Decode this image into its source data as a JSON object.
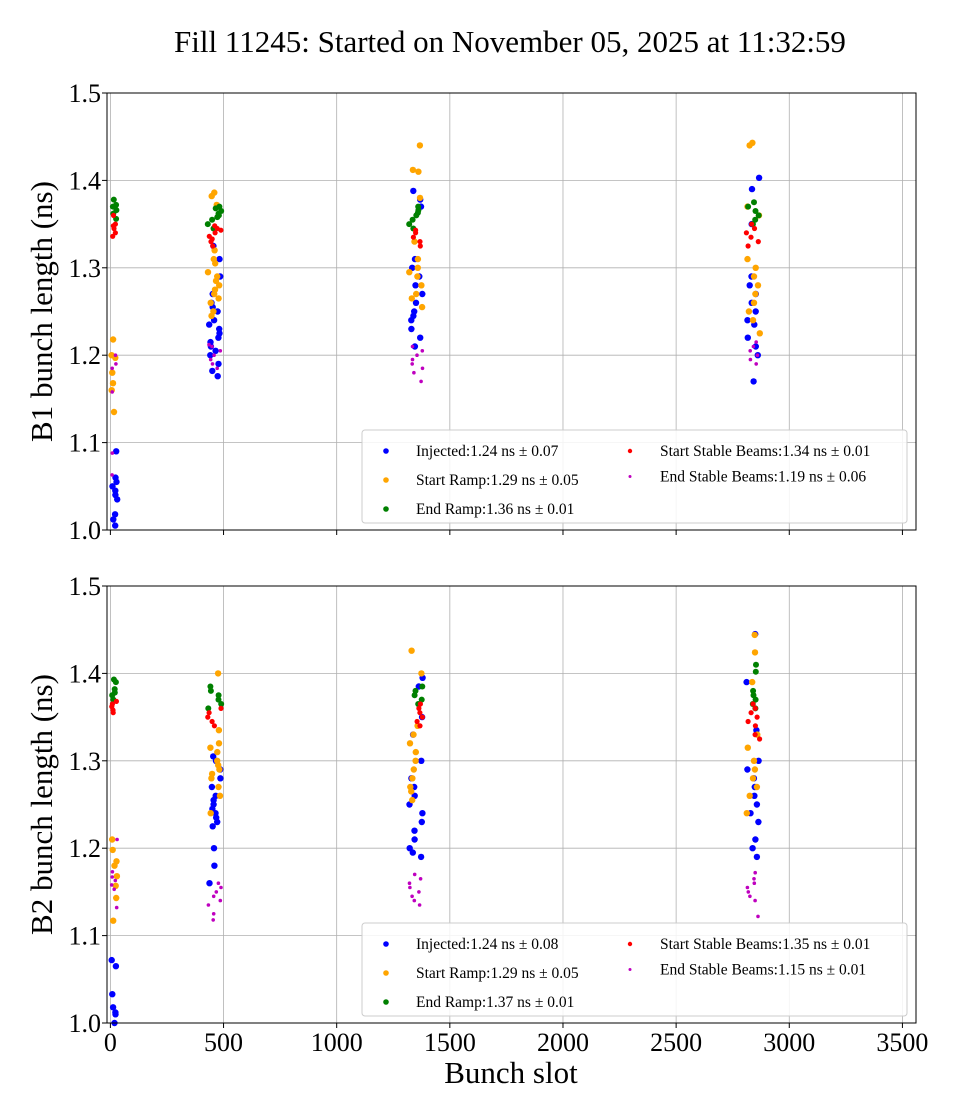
{
  "chart_data": {
    "type": "scatter",
    "title": "Fill 11245: Started on November 05, 2025 at 11:32:59",
    "xlabel": "Bunch slot",
    "xlim": [
      -15,
      3560
    ],
    "xticks": [
      0,
      500,
      1000,
      1500,
      2000,
      2500,
      3000,
      3500
    ],
    "grid": true,
    "legend_placement": "lower-right",
    "series_colors": {
      "Injected": "#0000ff",
      "Start Ramp": "#ffa500",
      "End Ramp": "#008000",
      "Start Stable Beams": "#ff0000",
      "End Stable Beams": "#bf00bf"
    },
    "panels": [
      {
        "id": "B1",
        "ylabel": "B1 bunch length (ns)",
        "ylim": [
          1.0,
          1.5
        ],
        "yticks": [
          "1.0",
          "1.1",
          "1.2",
          "1.3",
          "1.4",
          "1.5"
        ],
        "show_xticklabels": false,
        "legend": [
          {
            "name": "Injected",
            "text": "Injected:1.24 ns ± 0.07",
            "mean": 1.24,
            "std": 0.07
          },
          {
            "name": "Start Ramp",
            "text": "Start Ramp:1.29 ns ± 0.05",
            "mean": 1.29,
            "std": 0.05
          },
          {
            "name": "End Ramp",
            "text": "End Ramp:1.36 ns ± 0.01",
            "mean": 1.36,
            "std": 0.01
          },
          {
            "name": "Start Stable Beams",
            "text": "Start Stable Beams:1.34 ns ± 0.01",
            "mean": 1.34,
            "std": 0.01
          },
          {
            "name": "End Stable Beams",
            "text": "End Stable Beams:1.19 ns ± 0.06",
            "mean": 1.19,
            "std": 0.06
          }
        ],
        "clusters": [
          {
            "x_range": [
              5,
              30
            ],
            "series": {
              "Injected": [
                1.005,
                1.012,
                1.018,
                1.035,
                1.04,
                1.045,
                1.05,
                1.055,
                1.06,
                1.09
              ],
              "Start Ramp": [
                1.135,
                1.16,
                1.168,
                1.18,
                1.197,
                1.2,
                1.218
              ],
              "End Ramp": [
                1.356,
                1.362,
                1.366,
                1.37,
                1.372,
                1.378
              ],
              "Start Stable Beams": [
                1.336,
                1.34,
                1.345,
                1.348,
                1.35,
                1.36
              ],
              "End Stable Beams": [
                1.063,
                1.088,
                1.158,
                1.185,
                1.19,
                1.2
              ]
            }
          },
          {
            "x_range": [
              430,
              490
            ],
            "series": {
              "Injected": [
                1.176,
                1.182,
                1.19,
                1.2,
                1.205,
                1.21,
                1.215,
                1.22,
                1.225,
                1.23,
                1.235,
                1.24,
                1.25,
                1.255,
                1.26,
                1.27,
                1.29,
                1.31,
                1.325
              ],
              "Start Ramp": [
                1.245,
                1.25,
                1.26,
                1.265,
                1.27,
                1.275,
                1.28,
                1.285,
                1.29,
                1.295,
                1.305,
                1.31,
                1.32,
                1.372,
                1.382,
                1.386
              ],
              "End Ramp": [
                1.345,
                1.35,
                1.355,
                1.358,
                1.36,
                1.362,
                1.365,
                1.368,
                1.37
              ],
              "Start Stable Beams": [
                1.325,
                1.33,
                1.333,
                1.336,
                1.34,
                1.343,
                1.345,
                1.348
              ],
              "End Stable Beams": [
                1.185,
                1.19,
                1.195,
                1.2,
                1.205,
                1.21,
                1.212
              ]
            }
          },
          {
            "x_range": [
              1320,
              1380
            ],
            "series": {
              "Injected": [
                1.21,
                1.22,
                1.23,
                1.24,
                1.245,
                1.25,
                1.26,
                1.27,
                1.28,
                1.29,
                1.3,
                1.31,
                1.37,
                1.378,
                1.388
              ],
              "Start Ramp": [
                1.255,
                1.265,
                1.27,
                1.28,
                1.29,
                1.295,
                1.3,
                1.31,
                1.33,
                1.38,
                1.41,
                1.412,
                1.44
              ],
              "End Ramp": [
                1.345,
                1.35,
                1.355,
                1.36,
                1.363,
                1.366,
                1.37
              ],
              "Start Stable Beams": [
                1.325,
                1.33,
                1.335,
                1.34,
                1.343
              ],
              "End Stable Beams": [
                1.17,
                1.18,
                1.185,
                1.19,
                1.195,
                1.2,
                1.205,
                1.21
              ]
            }
          },
          {
            "x_range": [
              2810,
              2870
            ],
            "series": {
              "Injected": [
                1.17,
                1.2,
                1.21,
                1.22,
                1.235,
                1.24,
                1.25,
                1.26,
                1.27,
                1.28,
                1.29,
                1.35,
                1.39,
                1.403
              ],
              "Start Ramp": [
                1.225,
                1.24,
                1.25,
                1.26,
                1.27,
                1.28,
                1.29,
                1.3,
                1.31,
                1.36,
                1.37,
                1.44,
                1.443
              ],
              "End Ramp": [
                1.35,
                1.355,
                1.36,
                1.365,
                1.37,
                1.375
              ],
              "Start Stable Beams": [
                1.325,
                1.33,
                1.335,
                1.34,
                1.345,
                1.35
              ],
              "End Stable Beams": [
                1.19,
                1.195,
                1.2,
                1.205,
                1.21,
                1.215
              ]
            }
          }
        ]
      },
      {
        "id": "B2",
        "ylabel": "B2 bunch length (ns)",
        "ylim": [
          1.0,
          1.5
        ],
        "yticks": [
          "1.0",
          "1.1",
          "1.2",
          "1.3",
          "1.4",
          "1.5"
        ],
        "show_xticklabels": true,
        "legend": [
          {
            "name": "Injected",
            "text": "Injected:1.24 ns ± 0.08",
            "mean": 1.24,
            "std": 0.08
          },
          {
            "name": "Start Ramp",
            "text": "Start Ramp:1.29 ns ± 0.05",
            "mean": 1.29,
            "std": 0.05
          },
          {
            "name": "End Ramp",
            "text": "End Ramp:1.37 ns ± 0.01",
            "mean": 1.37,
            "std": 0.01
          },
          {
            "name": "Start Stable Beams",
            "text": "Start Stable Beams:1.35 ns ± 0.01",
            "mean": 1.35,
            "std": 0.01
          },
          {
            "name": "End Stable Beams",
            "text": "End Stable Beams:1.15 ns ± 0.01",
            "mean": 1.15,
            "std": 0.01
          }
        ],
        "clusters": [
          {
            "x_range": [
              5,
              30
            ],
            "series": {
              "Injected": [
                1.0,
                1.01,
                1.012,
                1.018,
                1.033,
                1.065,
                1.072
              ],
              "Start Ramp": [
                1.117,
                1.143,
                1.157,
                1.168,
                1.18,
                1.185,
                1.198,
                1.21
              ],
              "End Ramp": [
                1.37,
                1.375,
                1.378,
                1.382,
                1.39,
                1.393
              ],
              "Start Stable Beams": [
                1.355,
                1.358,
                1.362,
                1.365,
                1.368
              ],
              "End Stable Beams": [
                1.132,
                1.153,
                1.158,
                1.163,
                1.167,
                1.173,
                1.21
              ]
            }
          },
          {
            "x_range": [
              430,
              490
            ],
            "series": {
              "Injected": [
                1.16,
                1.18,
                1.2,
                1.225,
                1.23,
                1.235,
                1.24,
                1.245,
                1.25,
                1.255,
                1.26,
                1.27,
                1.28,
                1.29,
                1.3,
                1.305
              ],
              "Start Ramp": [
                1.24,
                1.26,
                1.27,
                1.28,
                1.285,
                1.29,
                1.295,
                1.3,
                1.31,
                1.315,
                1.32,
                1.335,
                1.4
              ],
              "End Ramp": [
                1.36,
                1.365,
                1.37,
                1.375,
                1.38,
                1.385
              ],
              "Start Stable Beams": [
                1.34,
                1.345,
                1.35,
                1.355,
                1.36
              ],
              "End Stable Beams": [
                1.118,
                1.125,
                1.135,
                1.14,
                1.145,
                1.15,
                1.155,
                1.16
              ]
            }
          },
          {
            "x_range": [
              1320,
              1380
            ],
            "series": {
              "Injected": [
                1.19,
                1.195,
                1.2,
                1.21,
                1.22,
                1.23,
                1.24,
                1.25,
                1.26,
                1.27,
                1.28,
                1.3,
                1.33,
                1.35,
                1.385,
                1.395
              ],
              "Start Ramp": [
                1.255,
                1.265,
                1.27,
                1.28,
                1.29,
                1.3,
                1.31,
                1.32,
                1.33,
                1.34,
                1.4,
                1.426
              ],
              "End Ramp": [
                1.365,
                1.37,
                1.375,
                1.38,
                1.385
              ],
              "Start Stable Beams": [
                1.34,
                1.345,
                1.35,
                1.355,
                1.36,
                1.365
              ],
              "End Stable Beams": [
                1.135,
                1.14,
                1.145,
                1.15,
                1.155,
                1.16,
                1.165,
                1.17
              ]
            }
          },
          {
            "x_range": [
              2810,
              2870
            ],
            "series": {
              "Injected": [
                1.19,
                1.2,
                1.21,
                1.23,
                1.24,
                1.25,
                1.26,
                1.27,
                1.28,
                1.29,
                1.3,
                1.335,
                1.39,
                1.445
              ],
              "Start Ramp": [
                1.24,
                1.26,
                1.27,
                1.28,
                1.29,
                1.3,
                1.315,
                1.33,
                1.39,
                1.424,
                1.444
              ],
              "End Ramp": [
                1.36,
                1.365,
                1.37,
                1.375,
                1.38,
                1.402,
                1.41
              ],
              "Start Stable Beams": [
                1.325,
                1.33,
                1.34,
                1.345,
                1.35,
                1.355,
                1.36,
                1.365
              ],
              "End Stable Beams": [
                1.122,
                1.14,
                1.145,
                1.15,
                1.155,
                1.16,
                1.165,
                1.172
              ]
            }
          }
        ]
      }
    ]
  }
}
